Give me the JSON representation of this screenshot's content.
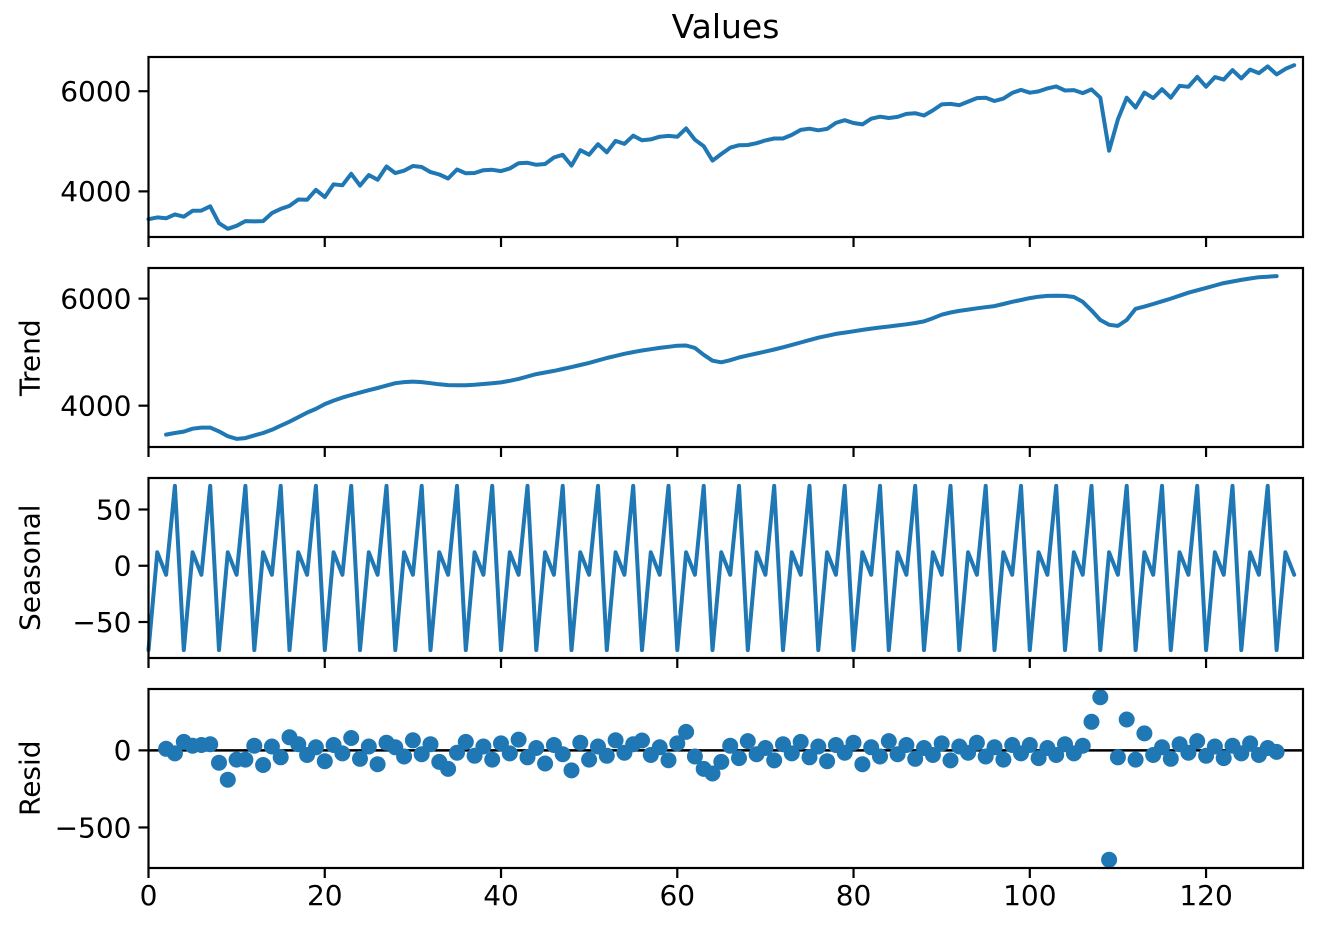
{
  "figure": {
    "title": "Values",
    "background": "#ffffff",
    "series_color": "#1f77b4",
    "axis_color": "#000000",
    "xlim": [
      0,
      131
    ],
    "x_ticks": [
      0,
      20,
      40,
      60,
      80,
      100,
      120
    ],
    "x_tick_labels": [
      "0",
      "20",
      "40",
      "60",
      "80",
      "100",
      "120"
    ]
  },
  "chart_data": [
    {
      "type": "line",
      "name": "observed",
      "panel_label": "",
      "ylim": [
        3089,
        6683
      ],
      "ytick_values": [
        4000,
        6000
      ],
      "ytick_labels": [
        "4000",
        "6000"
      ],
      "x_start": 0,
      "values": [
        3445,
        3480,
        3462,
        3541,
        3495,
        3612,
        3617,
        3701,
        3365,
        3252,
        3312,
        3406,
        3400,
        3407,
        3567,
        3651,
        3710,
        3837,
        3832,
        4031,
        3885,
        4142,
        4122,
        4351,
        4115,
        4327,
        4232,
        4496,
        4365,
        4412,
        4507,
        4486,
        4385,
        4337,
        4257,
        4436,
        4360,
        4367,
        4422,
        4431,
        4405,
        4457,
        4562,
        4571,
        4530,
        4547,
        4677,
        4731,
        4515,
        4822,
        4732,
        4941,
        4780,
        5007,
        4947,
        5111,
        5019,
        5037,
        5092,
        5107,
        5090,
        5257,
        5032,
        4901,
        4615,
        4747,
        4872,
        4921,
        4925,
        4962,
        5017,
        5056,
        5055,
        5127,
        5227,
        5251,
        5220,
        5247,
        5367,
        5421,
        5365,
        5337,
        5452,
        5491,
        5465,
        5487,
        5547,
        5561,
        5515,
        5617,
        5737,
        5746,
        5720,
        5792,
        5862,
        5871,
        5805,
        5852,
        5967,
        6026,
        5970,
        5997,
        6057,
        6096,
        6015,
        6022,
        5962,
        6036,
        5870,
        4812,
        5437,
        5871,
        5675,
        5972,
        5862,
        6041,
        5870,
        6107,
        6087,
        6286,
        6090,
        6282,
        6232,
        6421,
        6255,
        6432,
        6362,
        6496,
        6335,
        6445,
        6520
      ]
    },
    {
      "type": "line",
      "name": "trend",
      "panel_label": "Trend",
      "ylim": [
        3228,
        6572
      ],
      "ytick_values": [
        4000,
        6000
      ],
      "ytick_labels": [
        "4000",
        "6000"
      ],
      "x_start": 2,
      "values": [
        3460,
        3490,
        3515,
        3570,
        3590,
        3590,
        3520,
        3430,
        3380,
        3395,
        3445,
        3490,
        3550,
        3625,
        3700,
        3785,
        3870,
        3940,
        4030,
        4095,
        4150,
        4200,
        4245,
        4290,
        4330,
        4375,
        4420,
        4440,
        4450,
        4440,
        4420,
        4400,
        4385,
        4380,
        4380,
        4390,
        4405,
        4420,
        4435,
        4465,
        4500,
        4545,
        4590,
        4620,
        4650,
        4685,
        4720,
        4760,
        4800,
        4845,
        4890,
        4930,
        4970,
        5000,
        5030,
        5055,
        5080,
        5100,
        5120,
        5125,
        5080,
        4950,
        4840,
        4810,
        4850,
        4900,
        4940,
        4975,
        5010,
        5050,
        5090,
        5135,
        5180,
        5225,
        5270,
        5305,
        5340,
        5365,
        5390,
        5415,
        5440,
        5460,
        5480,
        5500,
        5520,
        5545,
        5575,
        5635,
        5700,
        5740,
        5770,
        5795,
        5820,
        5840,
        5860,
        5900,
        5940,
        5975,
        6010,
        6035,
        6050,
        6055,
        6050,
        6030,
        5940,
        5780,
        5600,
        5510,
        5490,
        5600,
        5810,
        5850,
        5900,
        5950,
        6000,
        6055,
        6110,
        6155,
        6200,
        6245,
        6290,
        6320,
        6350,
        6375,
        6400,
        6410,
        6420
      ]
    },
    {
      "type": "line",
      "name": "seasonal",
      "panel_label": "Seasonal",
      "ylim": [
        -82,
        78
      ],
      "ytick_values": [
        -50,
        0,
        50
      ],
      "ytick_labels": [
        "−50",
        "0",
        "50"
      ],
      "x_start": 0,
      "x_end": 130,
      "period": 4,
      "pattern": [
        -75,
        12,
        -8,
        71
      ]
    },
    {
      "type": "scatter",
      "name": "resid",
      "panel_label": "Resid",
      "ylim": [
        -763,
        398
      ],
      "ytick_values": [
        -500,
        0
      ],
      "ytick_labels": [
        "−500",
        "0"
      ],
      "x_start": 2,
      "zero_line": 0,
      "values": [
        10,
        -20,
        55,
        30,
        35,
        40,
        -80,
        -190,
        -60,
        -60,
        30,
        -95,
        25,
        -45,
        85,
        40,
        -30,
        20,
        -70,
        35,
        -20,
        80,
        -55,
        25,
        -90,
        50,
        20,
        -40,
        65,
        -25,
        40,
        -75,
        -120,
        -15,
        55,
        -35,
        25,
        -60,
        45,
        -20,
        70,
        -45,
        15,
        -85,
        35,
        -25,
        -130,
        50,
        -60,
        25,
        -35,
        65,
        -15,
        40,
        64,
        -30,
        20,
        -64,
        45,
        120,
        -40,
        -120,
        -150,
        -75,
        30,
        -50,
        60,
        -25,
        15,
        -65,
        40,
        -20,
        55,
        -45,
        25,
        -70,
        35,
        -15,
        50,
        -90,
        20,
        -40,
        60,
        -25,
        35,
        -55,
        15,
        -30,
        45,
        -65,
        25,
        -15,
        50,
        -40,
        20,
        -60,
        35,
        -20,
        35,
        -50,
        15,
        -30,
        40,
        -20,
        30,
        185,
        345,
        -710,
        -45,
        200,
        -60,
        110,
        -30,
        20,
        -55,
        40,
        -15,
        60,
        -35,
        25,
        -50,
        30,
        -20,
        45,
        -30,
        15,
        -10
      ]
    }
  ]
}
